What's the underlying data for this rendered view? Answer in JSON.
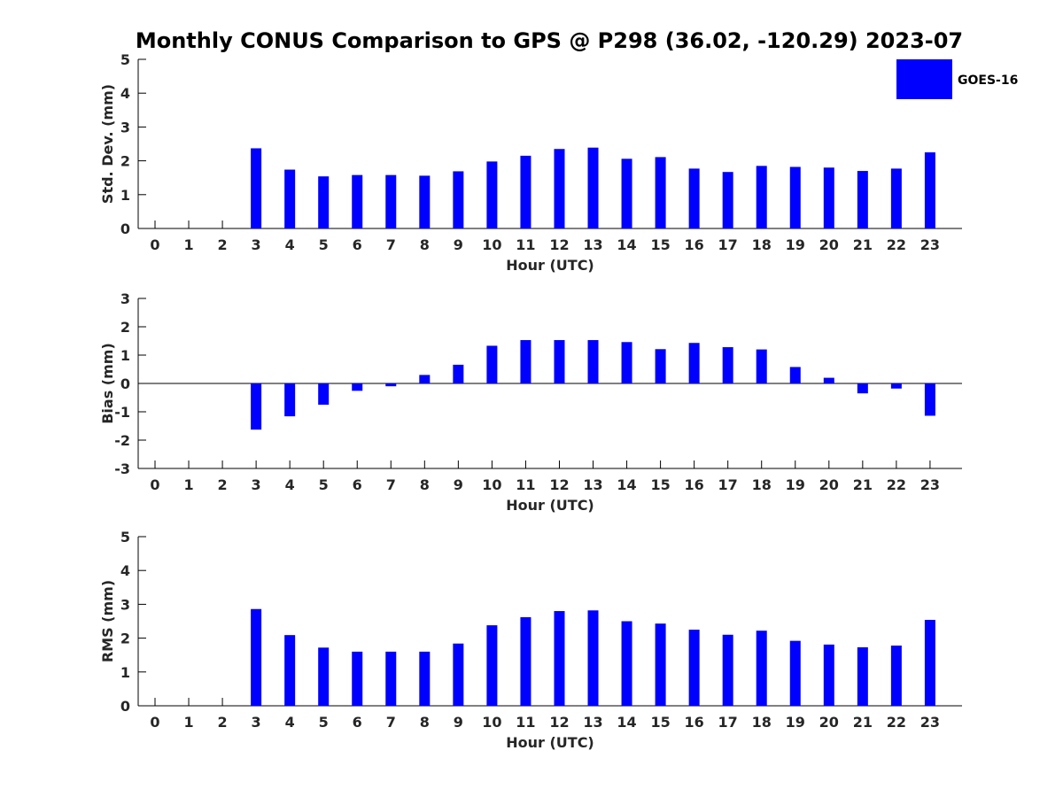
{
  "title": "Monthly CONUS Comparison to GPS @ P298 (36.02, -120.29) 2023-07",
  "legend": {
    "label": "GOES-16",
    "color": "#0000FF"
  },
  "chart_data": [
    {
      "type": "bar",
      "name": "std-dev",
      "categories": [
        "0",
        "1",
        "2",
        "3",
        "4",
        "5",
        "6",
        "7",
        "8",
        "9",
        "10",
        "11",
        "12",
        "13",
        "14",
        "15",
        "16",
        "17",
        "18",
        "19",
        "20",
        "21",
        "22",
        "23"
      ],
      "values": [
        null,
        null,
        null,
        2.37,
        1.74,
        1.54,
        1.58,
        1.58,
        1.56,
        1.69,
        1.98,
        2.15,
        2.35,
        2.39,
        2.06,
        2.11,
        1.77,
        1.67,
        1.85,
        1.82,
        1.8,
        1.7,
        1.77,
        2.25
      ],
      "xlabel": "Hour (UTC)",
      "ylabel": "Std. Dev. (mm)",
      "ylim": [
        0,
        5
      ],
      "yticks": [
        "0",
        "1",
        "2",
        "3",
        "4",
        "5"
      ],
      "series_name": "GOES-16",
      "color": "#0000FF"
    },
    {
      "type": "bar",
      "name": "bias",
      "categories": [
        "0",
        "1",
        "2",
        "3",
        "4",
        "5",
        "6",
        "7",
        "8",
        "9",
        "10",
        "11",
        "12",
        "13",
        "14",
        "15",
        "16",
        "17",
        "18",
        "19",
        "20",
        "21",
        "22",
        "23"
      ],
      "values": [
        null,
        null,
        null,
        -1.63,
        -1.16,
        -0.75,
        -0.26,
        -0.1,
        0.3,
        0.66,
        1.33,
        1.53,
        1.53,
        1.53,
        1.46,
        1.21,
        1.43,
        1.28,
        1.2,
        0.58,
        0.2,
        -0.35,
        -0.18,
        -1.14
      ],
      "xlabel": "Hour (UTC)",
      "ylabel": "Bias (mm)",
      "ylim": [
        -3,
        3
      ],
      "yticks": [
        "-3",
        "-2",
        "-1",
        "0",
        "1",
        "2",
        "3"
      ],
      "series_name": "GOES-16",
      "color": "#0000FF"
    },
    {
      "type": "bar",
      "name": "rms",
      "categories": [
        "0",
        "1",
        "2",
        "3",
        "4",
        "5",
        "6",
        "7",
        "8",
        "9",
        "10",
        "11",
        "12",
        "13",
        "14",
        "15",
        "16",
        "17",
        "18",
        "19",
        "20",
        "21",
        "22",
        "23"
      ],
      "values": [
        null,
        null,
        null,
        2.86,
        2.09,
        1.72,
        1.6,
        1.6,
        1.6,
        1.84,
        2.38,
        2.62,
        2.8,
        2.82,
        2.5,
        2.43,
        2.25,
        2.1,
        2.22,
        1.92,
        1.81,
        1.73,
        1.78,
        2.54
      ],
      "xlabel": "Hour (UTC)",
      "ylabel": "RMS (mm)",
      "ylim": [
        0,
        5
      ],
      "yticks": [
        "0",
        "1",
        "2",
        "3",
        "4",
        "5"
      ],
      "series_name": "GOES-16",
      "color": "#0000FF"
    }
  ]
}
